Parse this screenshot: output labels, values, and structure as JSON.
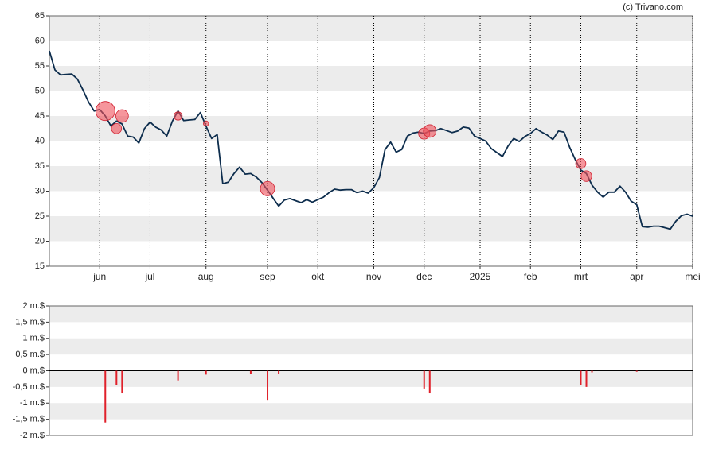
{
  "credit": "(c) Trivano.com",
  "chart_data": [
    {
      "type": "line",
      "categories": [
        null,
        null,
        null,
        null,
        null,
        null,
        null,
        null,
        null,
        "jun",
        null,
        null,
        null,
        null,
        null,
        null,
        null,
        null,
        "jul",
        null,
        null,
        null,
        null,
        null,
        null,
        null,
        null,
        null,
        "aug",
        null,
        null,
        null,
        null,
        null,
        null,
        null,
        null,
        null,
        null,
        "sep",
        null,
        null,
        null,
        null,
        null,
        null,
        null,
        null,
        "okt",
        null,
        null,
        null,
        null,
        null,
        null,
        null,
        null,
        null,
        "nov",
        null,
        null,
        null,
        null,
        null,
        null,
        null,
        null,
        "dec",
        null,
        null,
        null,
        null,
        null,
        null,
        null,
        null,
        null,
        "2025",
        null,
        null,
        null,
        null,
        null,
        null,
        null,
        null,
        "feb",
        null,
        null,
        null,
        null,
        null,
        null,
        null,
        null,
        "mrt",
        null,
        null,
        null,
        null,
        null,
        null,
        null,
        null,
        null,
        "apr",
        null,
        null,
        null,
        null,
        null,
        null,
        null,
        null,
        null,
        "mei"
      ],
      "series": [
        {
          "color": "#0d2d4d",
          "values": [
            58,
            54.2,
            53.2,
            53.3,
            53.4,
            52.4,
            50.2,
            47.8,
            46,
            46.3,
            45,
            43,
            44,
            43.4,
            41,
            40.8,
            39.6,
            42.5,
            43.8,
            42.8,
            42.2,
            41,
            44,
            46,
            44.1,
            44.2,
            44.3,
            45.7,
            43,
            40.5,
            41.3,
            31.5,
            31.8,
            33.5,
            34.8,
            33.4,
            33.5,
            32.8,
            31.7,
            30.2,
            28.6,
            27,
            28.2,
            28.5,
            28.1,
            27.7,
            28.3,
            27.8,
            28.3,
            28.8,
            29.7,
            30.4,
            30.2,
            30.3,
            30.3,
            29.7,
            30,
            29.6,
            30.7,
            32.7,
            38.3,
            39.8,
            37.8,
            38.3,
            41,
            41.6,
            41.8,
            41.5,
            42,
            42.1,
            42.5,
            42.1,
            41.7,
            42,
            42.8,
            42.6,
            41,
            40.5,
            40,
            38.5,
            37.7,
            36.9,
            39,
            40.5,
            39.9,
            40.9,
            41.5,
            42.5,
            41.8,
            41.2,
            40.3,
            42,
            41.8,
            38.8,
            36.3,
            34.2,
            33.5,
            31.2,
            29.8,
            28.8,
            29.8,
            29.8,
            31,
            29.8,
            28,
            27.3,
            22.9,
            22.8,
            23,
            23,
            22.7,
            22.4,
            24,
            25.1,
            25.4,
            25
          ]
        },
        {
          "type": "bubble",
          "color": "#f0505a",
          "values": [
            null,
            null,
            null,
            null,
            null,
            null,
            null,
            null,
            null,
            null,
            46,
            null,
            42.5,
            45,
            null,
            null,
            null,
            null,
            null,
            null,
            null,
            null,
            null,
            45,
            null,
            null,
            null,
            null,
            43.5,
            null,
            null,
            null,
            null,
            null,
            null,
            null,
            null,
            null,
            null,
            30.5,
            null,
            null,
            null,
            null,
            null,
            null,
            null,
            null,
            null,
            null,
            null,
            null,
            null,
            null,
            null,
            null,
            null,
            null,
            null,
            null,
            null,
            null,
            null,
            null,
            null,
            null,
            null,
            41.5,
            42,
            null,
            null,
            null,
            null,
            null,
            null,
            null,
            null,
            null,
            null,
            null,
            null,
            null,
            null,
            null,
            null,
            null,
            null,
            null,
            null,
            null,
            null,
            null,
            null,
            null,
            null,
            35.5,
            33,
            null,
            null,
            null,
            null,
            null,
            null,
            null,
            null,
            null,
            null,
            null,
            null,
            null,
            null,
            null,
            null,
            null,
            null,
            null
          ],
          "sizes": [
            null,
            null,
            null,
            null,
            null,
            null,
            null,
            null,
            null,
            null,
            1.6,
            null,
            0.45,
            0.7,
            null,
            null,
            null,
            null,
            null,
            null,
            null,
            null,
            null,
            0.3,
            null,
            null,
            null,
            null,
            0.12,
            null,
            null,
            null,
            null,
            null,
            null,
            null,
            null,
            null,
            null,
            0.9,
            null,
            null,
            null,
            null,
            null,
            null,
            null,
            null,
            null,
            null,
            null,
            null,
            null,
            null,
            null,
            null,
            null,
            null,
            null,
            null,
            null,
            null,
            null,
            null,
            null,
            null,
            null,
            0.55,
            0.7,
            null,
            null,
            null,
            null,
            null,
            null,
            null,
            null,
            null,
            null,
            null,
            null,
            null,
            null,
            null,
            null,
            null,
            null,
            null,
            null,
            null,
            null,
            null,
            null,
            null,
            null,
            0.45,
            0.5,
            null,
            null,
            null,
            null,
            null,
            null,
            null,
            null,
            null,
            null,
            null,
            null,
            null,
            null,
            null,
            null,
            null,
            null,
            null
          ]
        }
      ],
      "ylim": [
        15,
        65
      ],
      "yticks": [
        15,
        20,
        25,
        30,
        35,
        40,
        45,
        50,
        55,
        60,
        65
      ],
      "grid": "bands"
    },
    {
      "type": "bar",
      "color": "#e0202a",
      "values": [
        null,
        null,
        null,
        null,
        null,
        null,
        null,
        null,
        null,
        null,
        -1.6,
        null,
        -0.45,
        -0.7,
        null,
        null,
        null,
        null,
        null,
        null,
        null,
        null,
        null,
        -0.3,
        null,
        null,
        null,
        null,
        -0.12,
        null,
        null,
        null,
        null,
        null,
        null,
        null,
        -0.1,
        null,
        null,
        -0.9,
        null,
        -0.1,
        null,
        null,
        null,
        null,
        null,
        null,
        null,
        null,
        null,
        null,
        null,
        null,
        null,
        null,
        null,
        null,
        null,
        null,
        null,
        null,
        null,
        null,
        null,
        null,
        null,
        -0.55,
        -0.7,
        null,
        null,
        null,
        null,
        null,
        null,
        null,
        null,
        null,
        null,
        null,
        null,
        null,
        null,
        null,
        null,
        null,
        null,
        null,
        null,
        null,
        null,
        null,
        null,
        null,
        null,
        -0.45,
        -0.5,
        -0.05,
        null,
        null,
        null,
        null,
        null,
        null,
        null,
        -0.03,
        null,
        null,
        null,
        null,
        null,
        null,
        null,
        null,
        null,
        null
      ],
      "ylim": [
        -2,
        2
      ],
      "yticks": [
        {
          "value": -2,
          "label": "-2 m.$"
        },
        {
          "value": -1.5,
          "label": "-1,5 m.$"
        },
        {
          "value": -1,
          "label": "-1 m.$"
        },
        {
          "value": -0.5,
          "label": "-0,5 m.$"
        },
        {
          "value": 0,
          "label": "0 m.$"
        },
        {
          "value": 0.5,
          "label": "0,5 m.$"
        },
        {
          "value": 1,
          "label": "1 m.$"
        },
        {
          "value": 1.5,
          "label": "1,5 m.$"
        },
        {
          "value": 2,
          "label": "2 m.$"
        }
      ],
      "grid": "bands"
    }
  ]
}
